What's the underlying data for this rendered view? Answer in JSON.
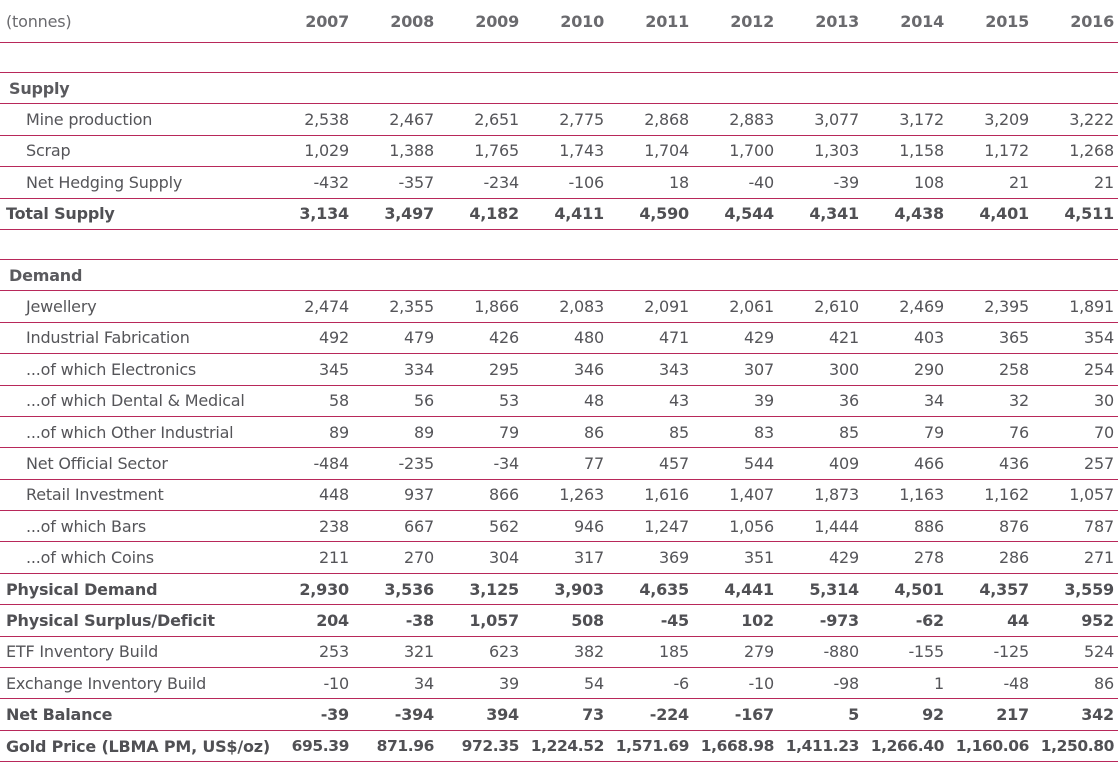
{
  "table": {
    "unit_label": "(tonnes)",
    "years": [
      "2007",
      "2008",
      "2009",
      "2010",
      "2011",
      "2012",
      "2013",
      "2014",
      "2015",
      "2016"
    ],
    "supply": {
      "heading": "Supply",
      "rows": [
        {
          "label": "Mine production",
          "values": [
            "2,538",
            "2,467",
            "2,651",
            "2,775",
            "2,868",
            "2,883",
            "3,077",
            "3,172",
            "3,209",
            "3,222"
          ]
        },
        {
          "label": "Scrap",
          "values": [
            "1,029",
            "1,388",
            "1,765",
            "1,743",
            "1,704",
            "1,700",
            "1,303",
            "1,158",
            "1,172",
            "1,268"
          ]
        },
        {
          "label": "Net Hedging Supply",
          "values": [
            "-432",
            "-357",
            "-234",
            "-106",
            "18",
            "-40",
            "-39",
            "108",
            "21",
            "21"
          ]
        }
      ],
      "total": {
        "label": "Total Supply",
        "values": [
          "3,134",
          "3,497",
          "4,182",
          "4,411",
          "4,590",
          "4,544",
          "4,341",
          "4,438",
          "4,401",
          "4,511"
        ]
      }
    },
    "demand": {
      "heading": "Demand",
      "rows": [
        {
          "label": "Jewellery",
          "values": [
            "2,474",
            "2,355",
            "1,866",
            "2,083",
            "2,091",
            "2,061",
            "2,610",
            "2,469",
            "2,395",
            "1,891"
          ]
        },
        {
          "label": "Industrial Fabrication",
          "values": [
            "492",
            "479",
            "426",
            "480",
            "471",
            "429",
            "421",
            "403",
            "365",
            "354"
          ]
        },
        {
          "label": "...of which Electronics",
          "values": [
            "345",
            "334",
            "295",
            "346",
            "343",
            "307",
            "300",
            "290",
            "258",
            "254"
          ]
        },
        {
          "label": "...of which Dental & Medical",
          "values": [
            "58",
            "56",
            "53",
            "48",
            "43",
            "39",
            "36",
            "34",
            "32",
            "30"
          ]
        },
        {
          "label": "...of which Other Industrial",
          "values": [
            "89",
            "89",
            "79",
            "86",
            "85",
            "83",
            "85",
            "79",
            "76",
            "70"
          ]
        },
        {
          "label": "Net Official Sector",
          "values": [
            "-484",
            "-235",
            "-34",
            "77",
            "457",
            "544",
            "409",
            "466",
            "436",
            "257"
          ]
        },
        {
          "label": "Retail Investment",
          "values": [
            "448",
            "937",
            "866",
            "1,263",
            "1,616",
            "1,407",
            "1,873",
            "1,163",
            "1,162",
            "1,057"
          ]
        },
        {
          "label": "...of which Bars",
          "values": [
            "238",
            "667",
            "562",
            "946",
            "1,247",
            "1,056",
            "1,444",
            "886",
            "876",
            "787"
          ]
        },
        {
          "label": "...of which Coins",
          "values": [
            "211",
            "270",
            "304",
            "317",
            "369",
            "351",
            "429",
            "278",
            "286",
            "271"
          ]
        }
      ]
    },
    "physical_demand": {
      "label": "Physical Demand",
      "values": [
        "2,930",
        "3,536",
        "3,125",
        "3,903",
        "4,635",
        "4,441",
        "5,314",
        "4,501",
        "4,357",
        "3,559"
      ]
    },
    "physical_surplus": {
      "label": "Physical Surplus/Deficit",
      "values": [
        "204",
        "-38",
        "1,057",
        "508",
        "-45",
        "102",
        "-973",
        "-62",
        "44",
        "952"
      ]
    },
    "etf_build": {
      "label": "ETF Inventory Build",
      "values": [
        "253",
        "321",
        "623",
        "382",
        "185",
        "279",
        "-880",
        "-155",
        "-125",
        "524"
      ]
    },
    "exchange_build": {
      "label": "Exchange Inventory Build",
      "values": [
        "-10",
        "34",
        "39",
        "54",
        "-6",
        "-10",
        "-98",
        "1",
        "-48",
        "86"
      ]
    },
    "net_balance": {
      "label": "Net Balance",
      "values": [
        "-39",
        "-394",
        "394",
        "73",
        "-224",
        "-167",
        "5",
        "92",
        "217",
        "342"
      ]
    },
    "gold_price": {
      "label": "Gold Price (LBMA PM, US$/oz)",
      "values": [
        "695.39",
        "871.96",
        "972.35",
        "1,224.52",
        "1,571.69",
        "1,668.98",
        "1,411.23",
        "1,266.40",
        "1,160.06",
        "1,250.80"
      ]
    }
  }
}
